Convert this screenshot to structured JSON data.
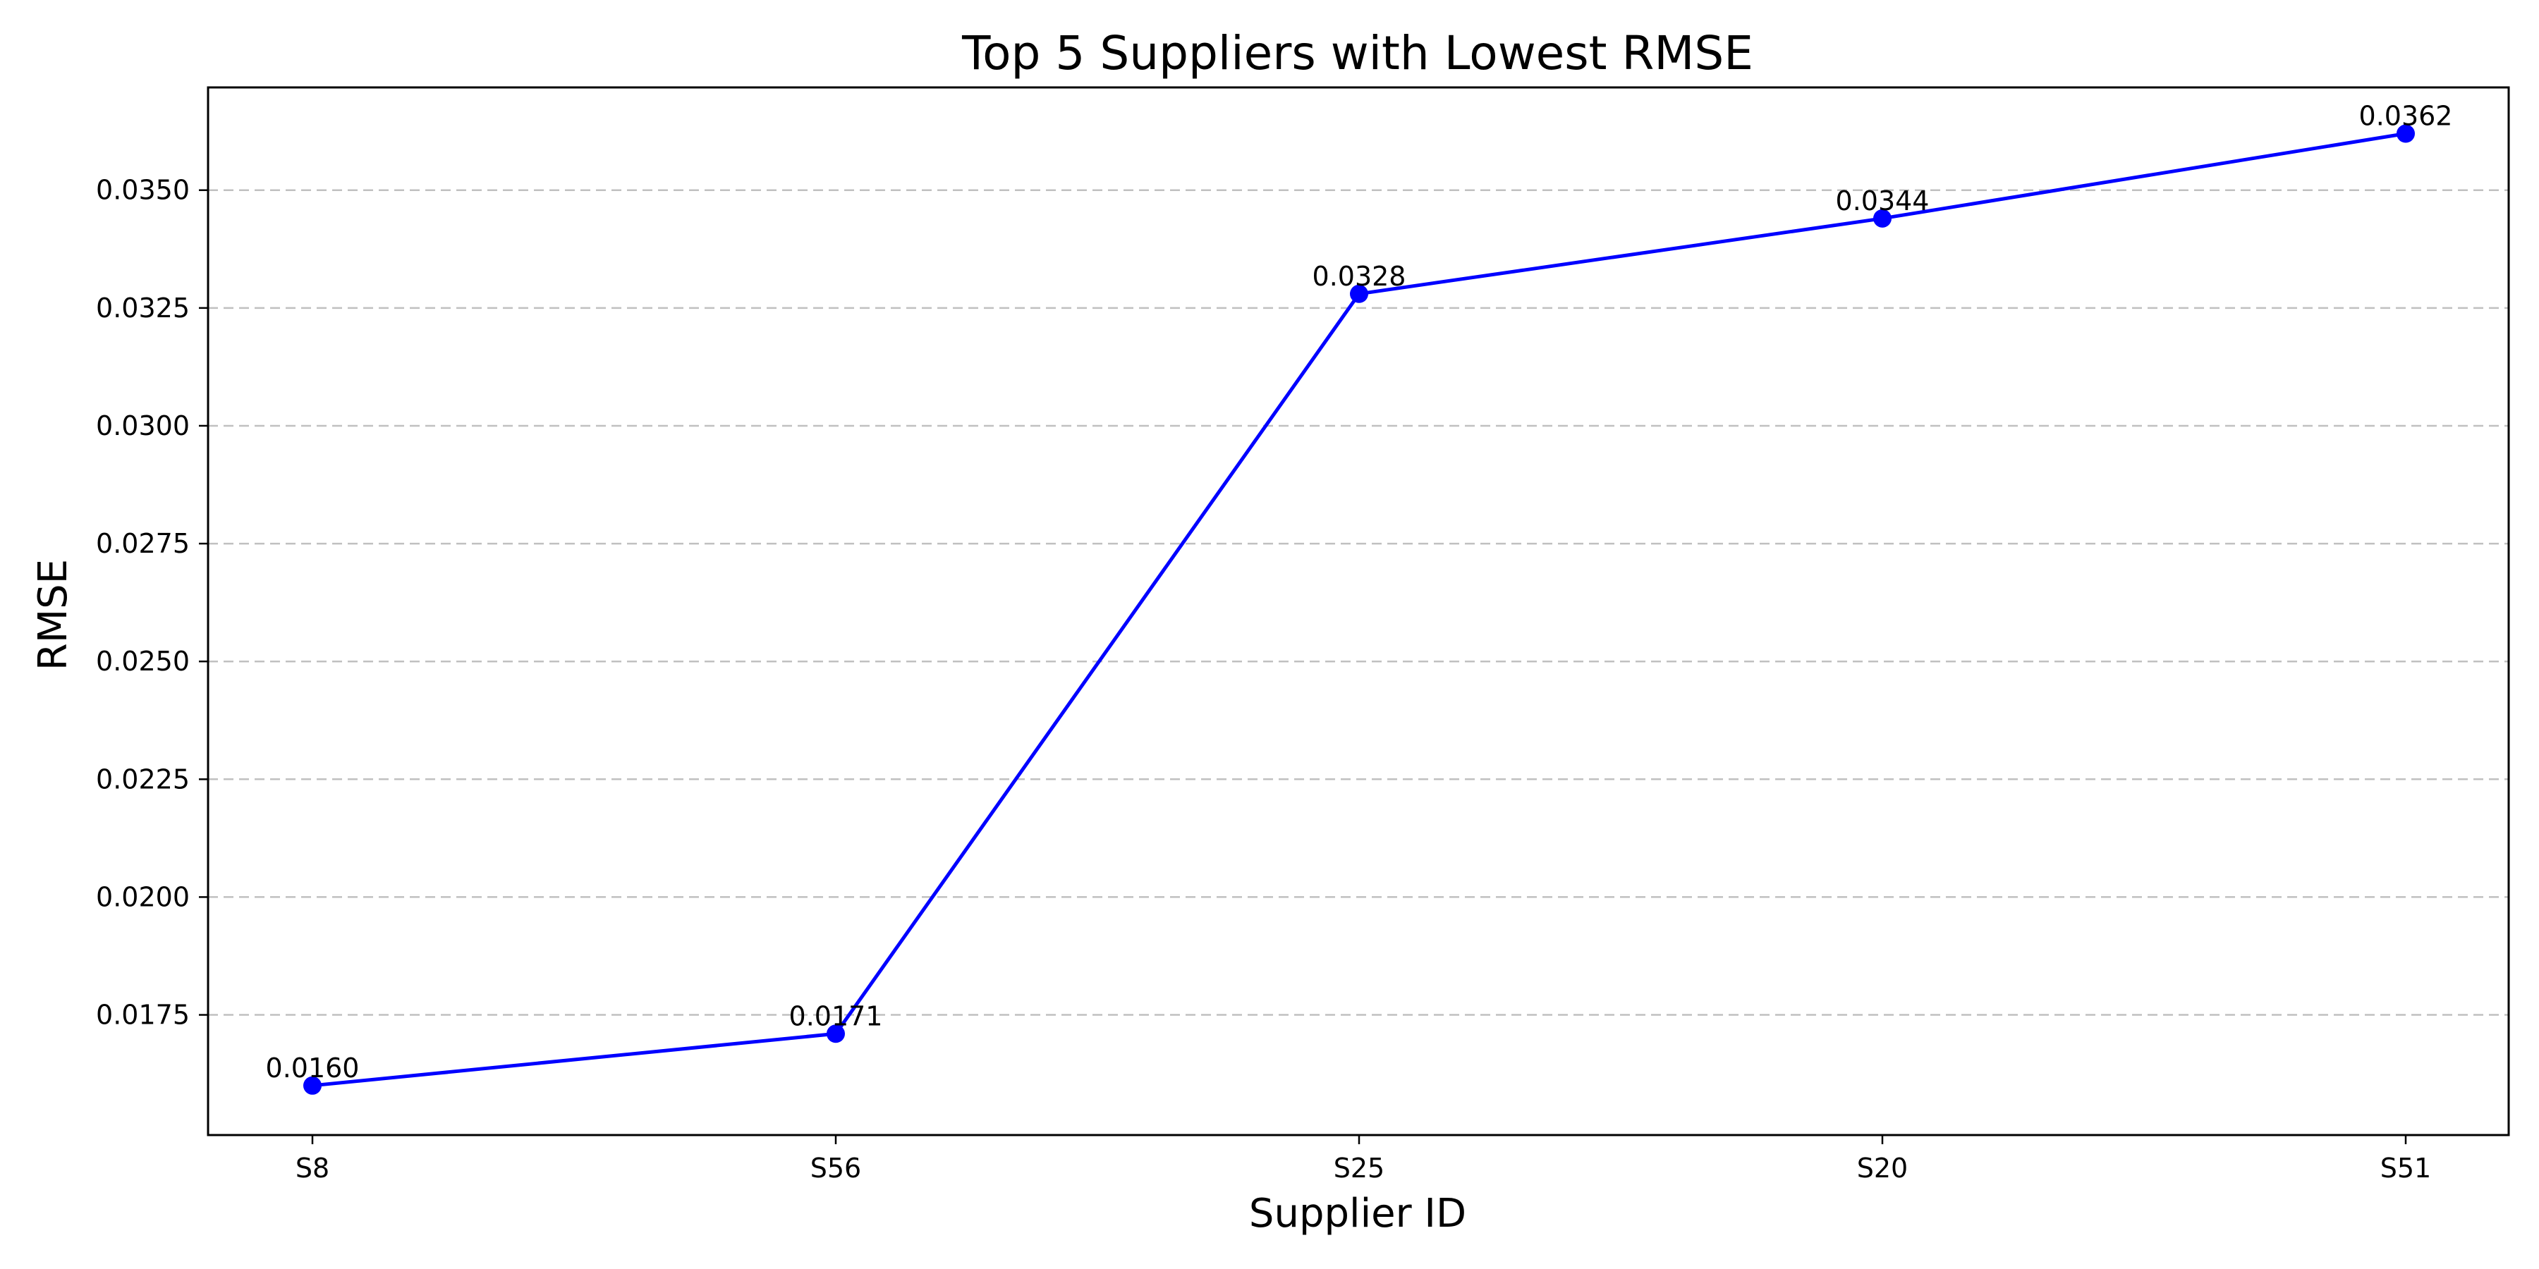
{
  "chart_data": {
    "type": "line",
    "title": "Top 5 Suppliers with Lowest RMSE",
    "xlabel": "Supplier ID",
    "ylabel": "RMSE",
    "categories": [
      "S8",
      "S56",
      "S25",
      "S20",
      "S51"
    ],
    "series": [
      {
        "values": [
          0.016,
          0.0171,
          0.0328,
          0.0344,
          0.0362
        ],
        "color": "#0000ff",
        "marker": "circle"
      }
    ],
    "data_labels": [
      "0.0160",
      "0.0171",
      "0.0328",
      "0.0344",
      "0.0362"
    ],
    "ylim": [
      0.01495,
      0.03718
    ],
    "yticks": [
      0.0175,
      0.02,
      0.0225,
      0.025,
      0.0275,
      0.03,
      0.0325,
      0.035
    ],
    "ytick_labels": [
      "0.0175",
      "0.0200",
      "0.0225",
      "0.0250",
      "0.0275",
      "0.0300",
      "0.0325",
      "0.0350"
    ],
    "grid": "y-dashed",
    "legend": "none"
  }
}
